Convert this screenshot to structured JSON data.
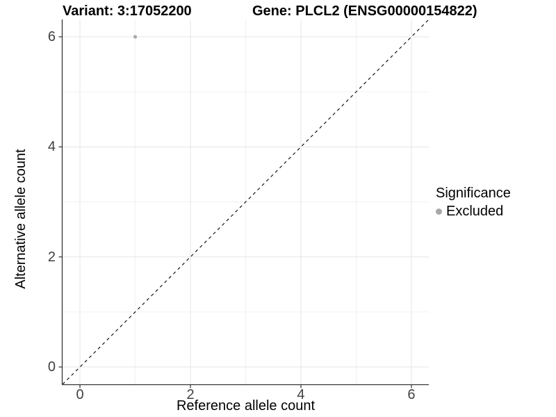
{
  "chart_data": {
    "type": "scatter",
    "titles": {
      "left": "Variant: 3:17052200",
      "right": "Gene: PLCL2 (ENSG00000154822)"
    },
    "xlabel": "Reference allele count",
    "ylabel": "Alternative allele count",
    "xlim": [
      -0.315,
      6.315
    ],
    "ylim": [
      -0.315,
      6.315
    ],
    "x_ticks": [
      0,
      2,
      4,
      6
    ],
    "y_ticks": [
      0,
      2,
      4,
      6
    ],
    "grid": {
      "major": true,
      "minor": true,
      "major_color": "#e5e5e5",
      "minor_color": "#f1f1f1"
    },
    "identity_line": {
      "equation": "y = x",
      "style": "dashed",
      "color": "#000000"
    },
    "series": [
      {
        "name": "Excluded",
        "color": "#a9a9a9",
        "points": [
          {
            "x": 1,
            "y": 6
          }
        ]
      }
    ],
    "legend": {
      "title": "Significance",
      "position": "right",
      "items": [
        {
          "label": "Excluded",
          "color": "#a9a9a9",
          "marker": "circle"
        }
      ]
    }
  },
  "style": {
    "axis_line_color": "#333333",
    "tick_color": "#333333",
    "tick_label_color": "#404040",
    "background": "#ffffff"
  }
}
